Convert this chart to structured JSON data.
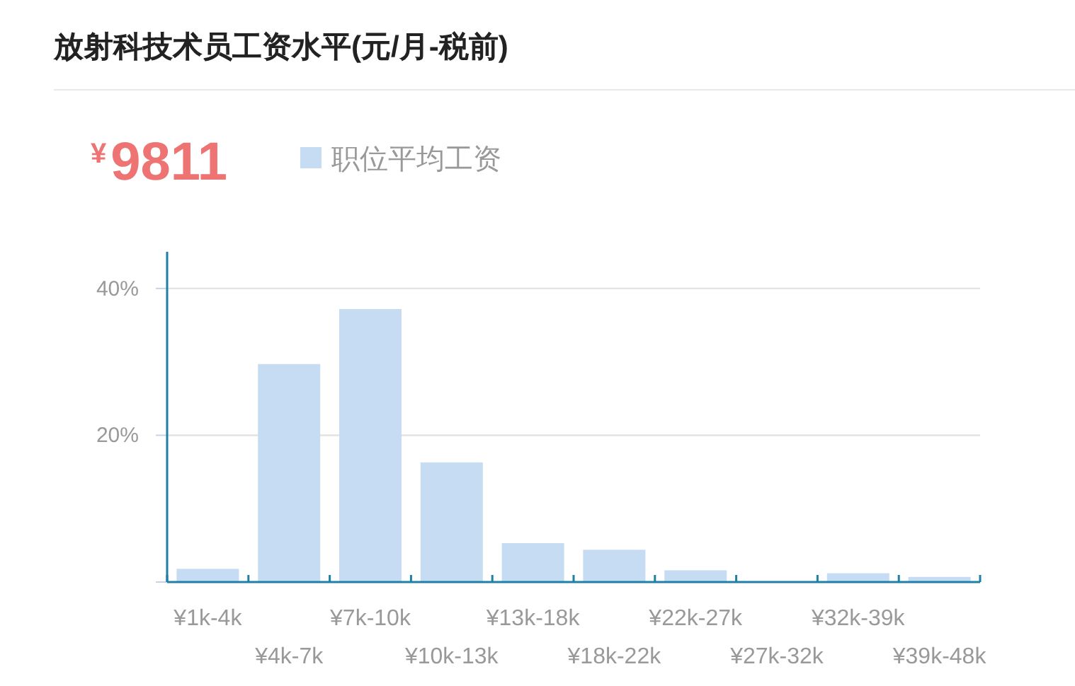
{
  "chart_data": {
    "type": "bar",
    "title": "放射科技术员工资水平(元/月-税前)",
    "annotations": [
      "¥9811"
    ],
    "categories": [
      "¥1k-4k",
      "¥4k-7k",
      "¥7k-10k",
      "¥10k-13k",
      "¥13k-18k",
      "¥18k-22k",
      "¥22k-27k",
      "¥27k-32k",
      "¥32k-39k",
      "¥39k-48k"
    ],
    "series": [
      {
        "name": "职位平均工资",
        "color": "#c6dcf2",
        "values": [
          1.8,
          29.7,
          37.2,
          16.3,
          5.3,
          4.4,
          1.6,
          0,
          1.2,
          0.7
        ]
      }
    ],
    "ylim": [
      0,
      45
    ],
    "yticks": [
      {
        "value": 0,
        "label": null
      },
      {
        "value": 20,
        "label": "20%"
      },
      {
        "value": 40,
        "label": "40%"
      }
    ],
    "grid": "y",
    "legend": "top"
  }
}
